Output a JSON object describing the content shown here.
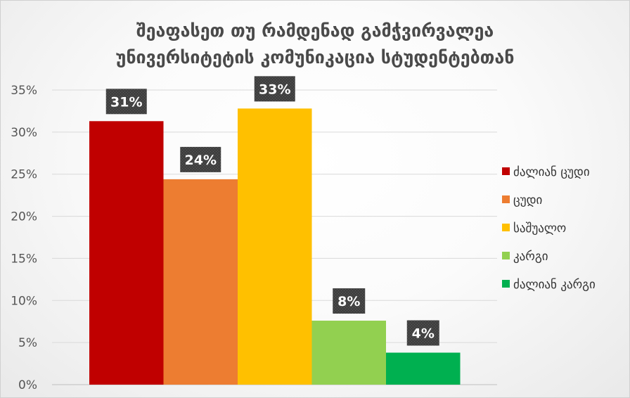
{
  "chart_data": {
    "type": "bar",
    "title_lines": [
      "შეაფასეთ თუ რამდენად გამჭვირვალეა",
      "უნივერსიტეტის კომუნიკაცია სტუდენტებთან"
    ],
    "xlabel": "",
    "ylabel": "",
    "ylim": [
      0,
      35
    ],
    "ytick_labels": [
      "0%",
      "5%",
      "10%",
      "15%",
      "20%",
      "25%",
      "30%",
      "35%"
    ],
    "ytick_values": [
      0,
      5,
      10,
      15,
      20,
      25,
      30,
      35
    ],
    "grid": true,
    "legend_position": "right",
    "series": [
      {
        "name": "ძალიან ცუდი",
        "value": 31.3,
        "label": "31%",
        "color": "#c00000"
      },
      {
        "name": "ცუდი",
        "value": 24.4,
        "label": "24%",
        "color": "#ed7d31"
      },
      {
        "name": "საშუალო",
        "value": 32.8,
        "label": "33%",
        "color": "#ffc000"
      },
      {
        "name": "კარგი",
        "value": 7.6,
        "label": "8%",
        "color": "#92d050"
      },
      {
        "name": "ძალიან კარგი",
        "value": 3.8,
        "label": "4%",
        "color": "#00b050"
      }
    ]
  }
}
